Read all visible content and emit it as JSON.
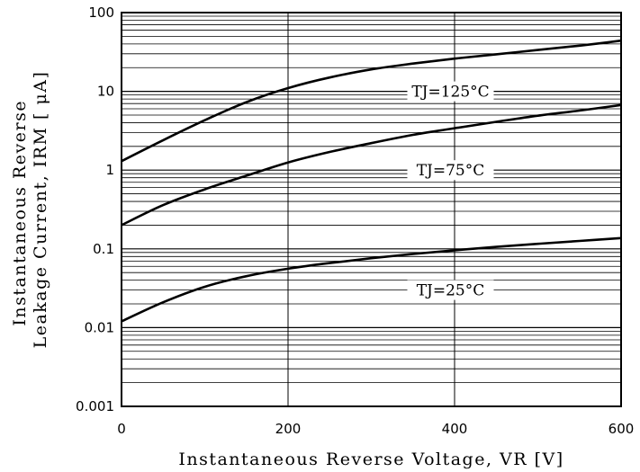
{
  "chart_data": {
    "type": "line",
    "title": "",
    "xlabel": "Instantaneous Reverse Voltage, VR [V]",
    "ylabel_lines": [
      "Instantaneous Reverse",
      "Leakage Current, IRM [ μA]"
    ],
    "x_scale": "linear",
    "y_scale": "log",
    "xlim": [
      0,
      600
    ],
    "ylim": [
      0.001,
      100
    ],
    "grid": true,
    "legend": "none",
    "x_ticks": [
      {
        "value": 0,
        "label": "0"
      },
      {
        "value": 200,
        "label": "200"
      },
      {
        "value": 400,
        "label": "400"
      },
      {
        "value": 600,
        "label": "600"
      }
    ],
    "y_ticks": [
      {
        "value": 100,
        "label": "100"
      },
      {
        "value": 10,
        "label": "10"
      },
      {
        "value": 1,
        "label": "1"
      },
      {
        "value": 0.1,
        "label": "0.1"
      },
      {
        "value": 0.01,
        "label": "0.01"
      },
      {
        "value": 0.001,
        "label": "0.001"
      }
    ],
    "series": [
      {
        "name": "TJ=125°C",
        "x": [
          0,
          50,
          100,
          150,
          200,
          250,
          300,
          350,
          400,
          450,
          500,
          550,
          600
        ],
        "y": [
          1.3,
          2.4,
          4.3,
          7.3,
          11,
          15,
          19,
          22.5,
          26,
          29.5,
          33.5,
          38,
          44
        ]
      },
      {
        "name": "TJ=75°C",
        "x": [
          0,
          50,
          100,
          150,
          200,
          250,
          300,
          350,
          400,
          450,
          500,
          550,
          600
        ],
        "y": [
          0.2,
          0.36,
          0.57,
          0.85,
          1.25,
          1.7,
          2.2,
          2.8,
          3.4,
          4.1,
          4.9,
          5.7,
          6.7
        ]
      },
      {
        "name": "TJ=25°C",
        "x": [
          0,
          50,
          100,
          150,
          200,
          250,
          300,
          350,
          400,
          450,
          500,
          550,
          600
        ],
        "y": [
          0.012,
          0.021,
          0.033,
          0.045,
          0.056,
          0.066,
          0.076,
          0.086,
          0.096,
          0.106,
          0.116,
          0.126,
          0.137
        ]
      }
    ],
    "annotations": [
      {
        "series": "TJ=125°C",
        "text": "TJ=125°C",
        "x": 300,
        "y": 10
      },
      {
        "series": "TJ=75°C",
        "text": "TJ=75°C",
        "x": 300,
        "y": 1
      },
      {
        "series": "TJ=25°C",
        "text": "TJ=25°C",
        "x": 300,
        "y": 0.03
      }
    ]
  }
}
